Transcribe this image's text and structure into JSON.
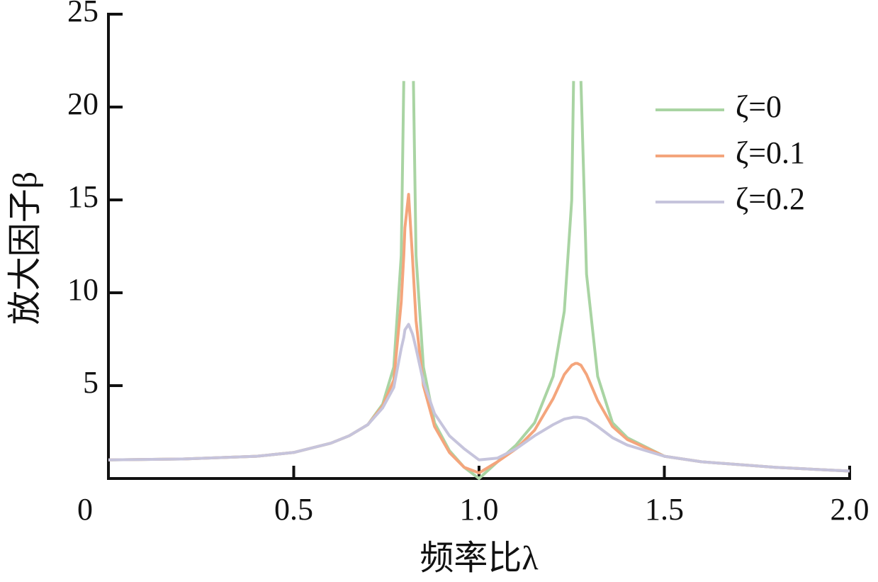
{
  "chart_data": {
    "type": "line",
    "x_label": "频率比λ",
    "y_label": "放大因子β",
    "x": [
      0,
      0.2,
      0.4,
      0.5,
      0.6,
      0.65,
      0.7,
      0.74,
      0.77,
      0.79,
      0.797,
      0.8,
      0.81,
      0.82,
      0.823,
      0.83,
      0.85,
      0.88,
      0.92,
      0.96,
      1.0,
      1.05,
      1.1,
      1.15,
      1.2,
      1.23,
      1.25,
      1.255,
      1.26,
      1.265,
      1.275,
      1.29,
      1.32,
      1.36,
      1.4,
      1.5,
      1.6,
      1.8,
      2.0
    ],
    "series": [
      {
        "name": "ζ=0",
        "color": "#a9d4a3",
        "values": [
          1.0,
          1.05,
          1.2,
          1.4,
          1.9,
          2.3,
          2.9,
          4.0,
          6.0,
          12,
          21.4,
          null,
          null,
          null,
          21.4,
          12,
          6,
          3,
          1.5,
          0.6,
          0,
          0.9,
          1.8,
          3,
          5.5,
          9,
          15,
          21.4,
          null,
          null,
          21.4,
          11,
          5.5,
          3,
          2.2,
          1.2,
          0.9,
          0.6,
          0.4
        ]
      },
      {
        "name": "ζ=0.1",
        "color": "#f4a57c",
        "values": [
          1.0,
          1.05,
          1.2,
          1.4,
          1.9,
          2.3,
          2.9,
          3.9,
          5.3,
          9.5,
          12,
          13.5,
          15.3,
          12,
          11,
          8.5,
          5,
          2.8,
          1.4,
          0.6,
          0.3,
          0.9,
          1.6,
          2.6,
          4.3,
          5.6,
          6.1,
          6.15,
          6.2,
          6.2,
          6.1,
          5.6,
          4.2,
          2.8,
          2.1,
          1.2,
          0.9,
          0.6,
          0.4
        ]
      },
      {
        "name": "ζ=0.2",
        "color": "#c6c4dc",
        "values": [
          1.0,
          1.05,
          1.2,
          1.4,
          1.9,
          2.3,
          2.9,
          3.8,
          4.9,
          7.0,
          7.6,
          8.0,
          8.3,
          7.8,
          7.6,
          7.0,
          5.2,
          3.5,
          2.3,
          1.6,
          1.0,
          1.1,
          1.6,
          2.3,
          2.9,
          3.2,
          3.28,
          3.3,
          3.3,
          3.3,
          3.28,
          3.2,
          2.8,
          2.2,
          1.8,
          1.2,
          0.9,
          0.6,
          0.4
        ]
      }
    ],
    "xlim": [
      0,
      2
    ],
    "xticks": [
      0,
      0.5,
      {
        "value": 1,
        "label": "1.0"
      },
      1.5,
      {
        "value": 2,
        "label": "2.0"
      }
    ],
    "ylim": [
      0,
      25
    ],
    "yticks": [
      5,
      10,
      15,
      20,
      25
    ],
    "legend": "upper-right"
  }
}
